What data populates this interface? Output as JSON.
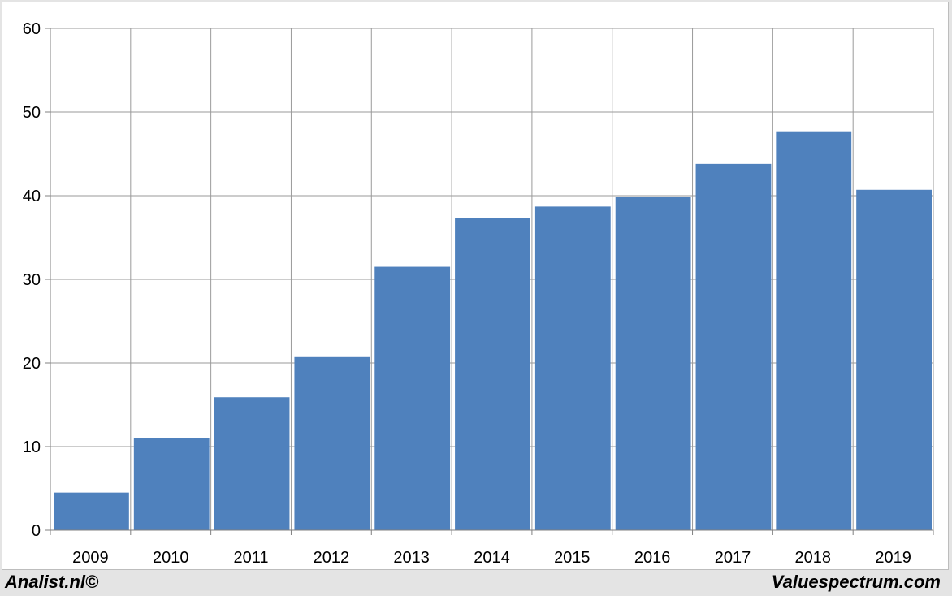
{
  "chart_data": {
    "type": "bar",
    "title": "",
    "xlabel": "",
    "ylabel": "",
    "categories": [
      "2009",
      "2010",
      "2011",
      "2012",
      "2013",
      "2014",
      "2015",
      "2016",
      "2017",
      "2018",
      "2019"
    ],
    "values": [
      4.5,
      11.0,
      15.9,
      20.7,
      31.5,
      37.3,
      38.7,
      39.9,
      43.8,
      47.7,
      40.7
    ],
    "ylim": [
      0,
      60
    ],
    "yticks": [
      0,
      10,
      20,
      30,
      40,
      50,
      60
    ],
    "grid": true,
    "legend": "none",
    "bar_color": "#4f81bd"
  },
  "footer": {
    "left": "Analist.nl©",
    "right": "Valuespectrum.com"
  }
}
